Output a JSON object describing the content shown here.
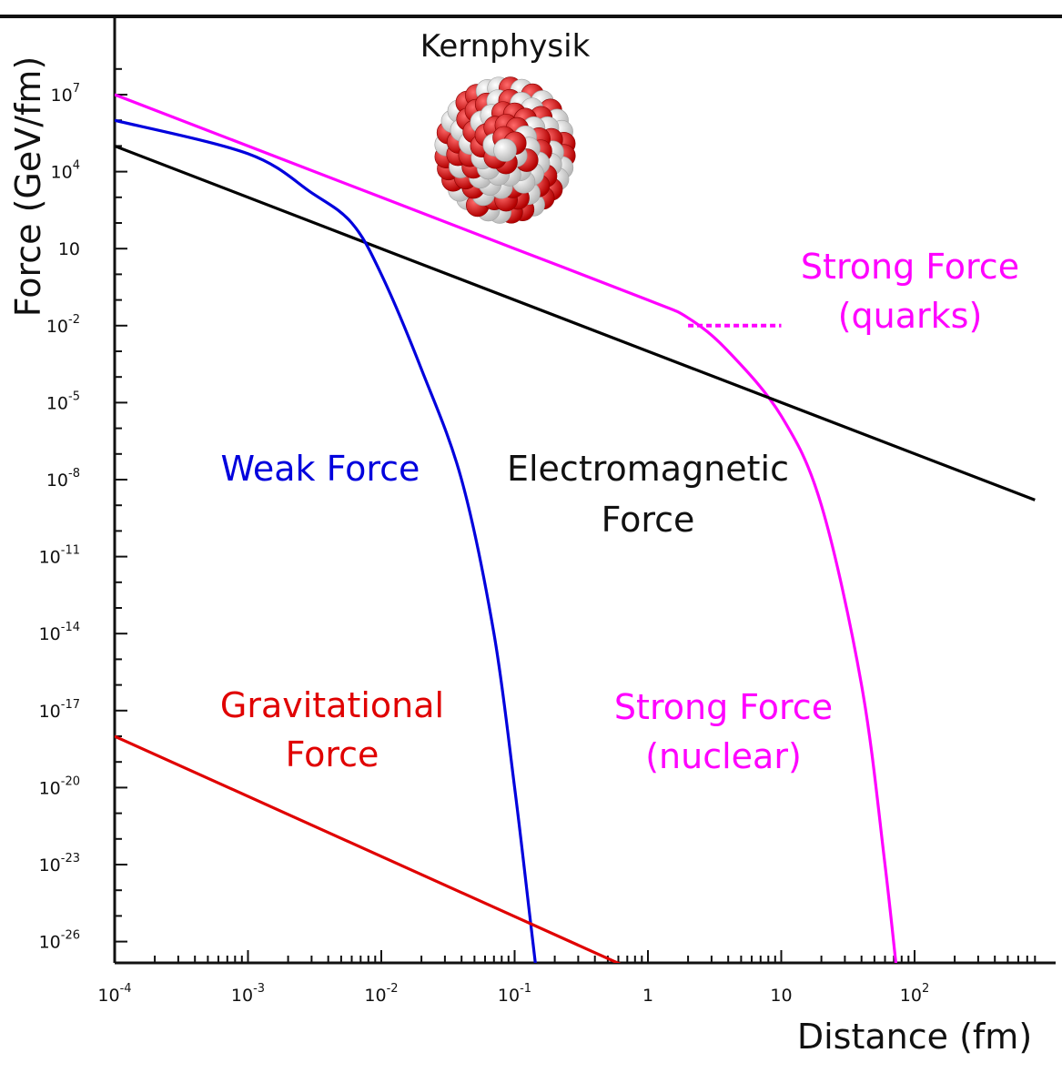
{
  "chart_data": {
    "type": "line",
    "title": "Kernphysik",
    "xlabel": "Distance (fm)",
    "ylabel": "Force (GeV/fm)",
    "xscale": "log",
    "yscale": "log",
    "xlim": [
      0.0001,
      800
    ],
    "ylim_exponent": [
      -30,
      9
    ],
    "grid": false,
    "x_ticks": [
      {
        "base": "10",
        "exp": "-4"
      },
      {
        "base": "10",
        "exp": "-3"
      },
      {
        "base": "10",
        "exp": "-2"
      },
      {
        "base": "10",
        "exp": "-1"
      },
      {
        "base": "1",
        "exp": ""
      },
      {
        "base": "10",
        "exp": ""
      },
      {
        "base": "10",
        "exp": "2"
      }
    ],
    "y_ticks": [
      {
        "base": "10",
        "exp": "7"
      },
      {
        "base": "10",
        "exp": "4"
      },
      {
        "base": "10",
        "exp": ""
      },
      {
        "base": "10",
        "exp": "-2"
      },
      {
        "base": "10",
        "exp": "-5"
      },
      {
        "base": "10",
        "exp": "-8"
      },
      {
        "base": "10",
        "exp": "-11"
      },
      {
        "base": "10",
        "exp": "-14"
      },
      {
        "base": "10",
        "exp": "-17"
      },
      {
        "base": "10",
        "exp": "-20"
      },
      {
        "base": "10",
        "exp": "-23"
      },
      {
        "base": "10",
        "exp": "-26"
      }
    ],
    "series": [
      {
        "label_lines": [
          "Strong Force",
          "(quarks)"
        ],
        "color": "#ff00ff",
        "dashed": true,
        "points": [
          [
            2,
            0.01
          ],
          [
            10,
            0.01
          ]
        ]
      },
      {
        "label_lines": [
          "Strong Force",
          "(nuclear)"
        ],
        "color": "#ff00ff",
        "points": [
          [
            0.0001,
            10000000.0
          ],
          [
            0.001,
            100000.0
          ],
          [
            0.01,
            1000.0
          ],
          [
            0.1,
            10
          ],
          [
            1,
            0.1
          ],
          [
            2,
            0.02
          ],
          [
            4,
            0.001
          ],
          [
            10,
            3e-06
          ],
          [
            20,
            1e-09
          ],
          [
            40,
            1e-16
          ],
          [
            60,
            1e-23
          ],
          [
            80,
            1e-29
          ]
        ]
      },
      {
        "label_lines": [
          "Electromagnetic",
          "Force"
        ],
        "color": "#000000",
        "points": [
          [
            0.0001,
            100000
          ],
          [
            1,
            0.001
          ],
          [
            800,
            1.6e-09
          ]
        ]
      },
      {
        "label_lines": [
          "Weak Force"
        ],
        "color": "#0000dd",
        "points": [
          [
            0.0001,
            1000000
          ],
          [
            0.001,
            50000
          ],
          [
            0.003,
            1500
          ],
          [
            0.006,
            100
          ],
          [
            0.01,
            1
          ],
          [
            0.02,
            0.0002
          ],
          [
            0.04,
            1e-08
          ],
          [
            0.07,
            1e-14
          ],
          [
            0.1,
            1e-20
          ],
          [
            0.13,
            1e-25
          ],
          [
            0.16,
            1e-29
          ]
        ]
      },
      {
        "label_lines": [
          "Gravitational",
          "Force"
        ],
        "color": "#e00000",
        "points": [
          [
            0.0001,
            1e-18
          ],
          [
            5,
            1e-29
          ]
        ]
      }
    ]
  }
}
